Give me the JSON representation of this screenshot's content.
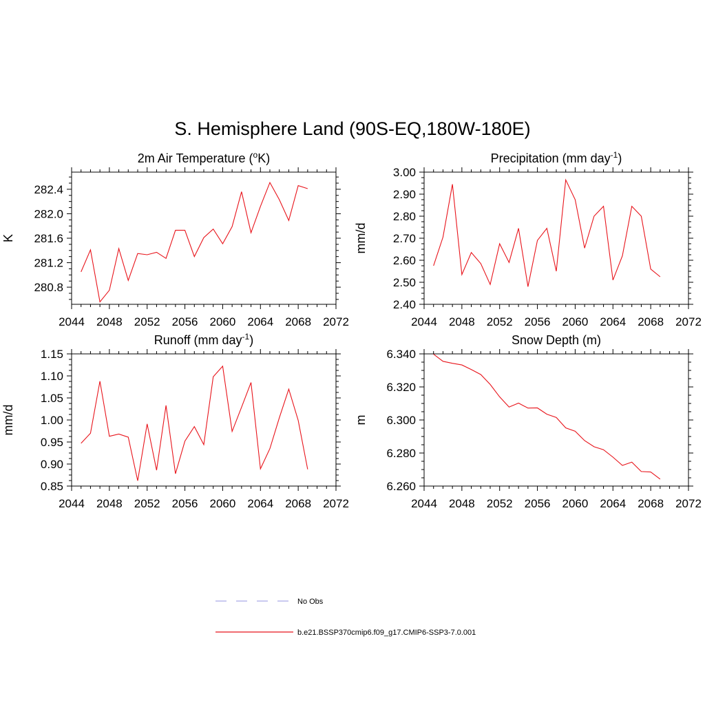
{
  "figure": {
    "title": "S. Hemisphere Land (90S-EQ,180W-180E)"
  },
  "colors": {
    "model_line": "#e8131a",
    "obs_line": "#a9a9e8",
    "axis": "#000000"
  },
  "legend": [
    {
      "label": "No Obs",
      "style": "dashed",
      "color": "#a9a9e8"
    },
    {
      "label": "b.e21.BSSP370cmip6.f09_g17.CMIP6-SSP3-7.0.001",
      "style": "solid",
      "color": "#e8131a"
    }
  ],
  "chart_data": [
    {
      "type": "line",
      "title_parts": [
        "2m Air Temperature (",
        "o",
        "K)"
      ],
      "ylabel": "K",
      "xlim": [
        2044,
        2072
      ],
      "ylim": [
        280.52,
        282.68
      ],
      "xticks": [
        2044,
        2048,
        2052,
        2056,
        2060,
        2064,
        2068,
        2072
      ],
      "yticks": [
        280.8,
        281.2,
        281.6,
        282.0,
        282.4
      ],
      "ytick_labels": [
        "280.8",
        "281.2",
        "281.6",
        "282.0",
        "282.4"
      ],
      "x": [
        2045,
        2046,
        2047,
        2048,
        2049,
        2050,
        2051,
        2052,
        2053,
        2054,
        2055,
        2056,
        2057,
        2058,
        2059,
        2060,
        2061,
        2062,
        2063,
        2064,
        2065,
        2066,
        2067,
        2068,
        2069
      ],
      "series": [
        {
          "name": "b.e21.BSSP370cmip6.f09_g17.CMIP6-SSP3-7.0.001",
          "values": [
            281.05,
            281.41,
            280.56,
            280.75,
            281.43,
            280.91,
            281.35,
            281.33,
            281.37,
            281.27,
            281.73,
            281.73,
            281.3,
            281.61,
            281.75,
            281.51,
            281.79,
            282.36,
            281.69,
            282.12,
            282.51,
            282.23,
            281.89,
            282.46,
            282.41
          ]
        }
      ]
    },
    {
      "type": "line",
      "title_parts": [
        "Precipitation (mm day",
        "-1",
        ")"
      ],
      "ylabel": "mm/d",
      "xlim": [
        2044,
        2072
      ],
      "ylim": [
        2.4,
        3.0
      ],
      "xticks": [
        2044,
        2048,
        2052,
        2056,
        2060,
        2064,
        2068,
        2072
      ],
      "yticks": [
        2.4,
        2.5,
        2.6,
        2.7,
        2.8,
        2.9,
        3.0
      ],
      "ytick_labels": [
        "2.40",
        "2.50",
        "2.60",
        "2.70",
        "2.80",
        "2.90",
        "3.00"
      ],
      "x": [
        2045,
        2046,
        2047,
        2048,
        2049,
        2050,
        2051,
        2052,
        2053,
        2054,
        2055,
        2056,
        2057,
        2058,
        2059,
        2060,
        2061,
        2062,
        2063,
        2064,
        2065,
        2066,
        2067,
        2068,
        2069
      ],
      "series": [
        {
          "name": "b.e21.BSSP370cmip6.f09_g17.CMIP6-SSP3-7.0.001",
          "values": [
            2.575,
            2.705,
            2.945,
            2.535,
            2.635,
            2.585,
            2.49,
            2.675,
            2.59,
            2.745,
            2.48,
            2.69,
            2.745,
            2.55,
            2.965,
            2.875,
            2.655,
            2.8,
            2.845,
            2.51,
            2.62,
            2.845,
            2.8,
            2.56,
            2.525
          ]
        }
      ]
    },
    {
      "type": "line",
      "title_parts": [
        "Runoff (mm day",
        "-1",
        ")"
      ],
      "ylabel": "mm/d",
      "xlim": [
        2044,
        2072
      ],
      "ylim": [
        0.85,
        1.15
      ],
      "xticks": [
        2044,
        2048,
        2052,
        2056,
        2060,
        2064,
        2068,
        2072
      ],
      "yticks": [
        0.85,
        0.9,
        0.95,
        1.0,
        1.05,
        1.1,
        1.15
      ],
      "ytick_labels": [
        "0.85",
        "0.90",
        "0.95",
        "1.00",
        "1.05",
        "1.10",
        "1.15"
      ],
      "x": [
        2045,
        2046,
        2047,
        2048,
        2049,
        2050,
        2051,
        2052,
        2053,
        2054,
        2055,
        2056,
        2057,
        2058,
        2059,
        2060,
        2061,
        2062,
        2063,
        2064,
        2065,
        2066,
        2067,
        2068,
        2069
      ],
      "series": [
        {
          "name": "b.e21.BSSP370cmip6.f09_g17.CMIP6-SSP3-7.0.001",
          "values": [
            0.947,
            0.97,
            1.088,
            0.963,
            0.968,
            0.961,
            0.862,
            0.991,
            0.886,
            1.033,
            0.878,
            0.952,
            0.985,
            0.944,
            1.098,
            1.122,
            0.974,
            1.029,
            1.085,
            0.889,
            0.935,
            1.005,
            1.07,
            0.999,
            0.888
          ]
        }
      ]
    },
    {
      "type": "line",
      "title_parts": [
        "Snow Depth (m)",
        "",
        ""
      ],
      "ylabel": "m",
      "xlim": [
        2044,
        2072
      ],
      "ylim": [
        6.26,
        6.34
      ],
      "xticks": [
        2044,
        2048,
        2052,
        2056,
        2060,
        2064,
        2068,
        2072
      ],
      "yticks": [
        6.26,
        6.28,
        6.3,
        6.32,
        6.34
      ],
      "ytick_labels": [
        "6.260",
        "6.280",
        "6.300",
        "6.320",
        "6.340"
      ],
      "x": [
        2045,
        2046,
        2047,
        2048,
        2049,
        2050,
        2051,
        2052,
        2053,
        2054,
        2055,
        2056,
        2057,
        2058,
        2059,
        2060,
        2061,
        2062,
        2063,
        2064,
        2065,
        2066,
        2067,
        2068,
        2069
      ],
      "series": [
        {
          "name": "b.e21.BSSP370cmip6.f09_g17.CMIP6-SSP3-7.0.001",
          "values": [
            6.3398,
            6.3355,
            6.3343,
            6.3333,
            6.3305,
            6.3275,
            6.3215,
            6.314,
            6.3078,
            6.3102,
            6.3072,
            6.3073,
            6.3035,
            6.3015,
            6.2952,
            6.2932,
            6.2875,
            6.2838,
            6.282,
            6.2775,
            6.2725,
            6.2745,
            6.2688,
            6.2685,
            6.2642
          ]
        }
      ]
    }
  ]
}
